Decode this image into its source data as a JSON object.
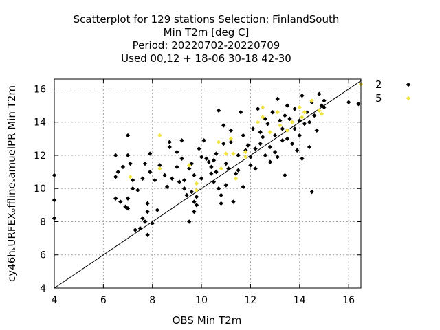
{
  "chart_data": {
    "type": "scatter",
    "title_lines": [
      "Scatterplot for  129 stations Selection: FinlandSouth",
      "Min T2m [deg C]",
      "Period: 20220702-20220709",
      "Used  00,12  + 18-06 30-18 42-30"
    ],
    "xlabel": "OBS Min T2m",
    "ylabel": "cy46hₛURFEXₒfflineₛamuelPR Min T2m",
    "xlim": [
      4,
      16.5
    ],
    "ylim": [
      4,
      16.6
    ],
    "xticks": [
      4,
      6,
      8,
      10,
      12,
      14,
      16
    ],
    "yticks": [
      4,
      6,
      8,
      10,
      12,
      14,
      16
    ],
    "grid": true,
    "legend_position": "top-right outside",
    "diagonal": true,
    "series": [
      {
        "name": "2",
        "color": "#000000",
        "points": [
          [
            4.0,
            10.8
          ],
          [
            4.0,
            9.3
          ],
          [
            4.0,
            8.2
          ],
          [
            6.5,
            12.0
          ],
          [
            6.5,
            10.7
          ],
          [
            6.5,
            9.4
          ],
          [
            6.6,
            11.0
          ],
          [
            6.7,
            9.2
          ],
          [
            6.8,
            11.3
          ],
          [
            6.9,
            8.9
          ],
          [
            7.0,
            13.2
          ],
          [
            7.0,
            12.0
          ],
          [
            7.0,
            9.4
          ],
          [
            7.0,
            8.8
          ],
          [
            7.1,
            11.5
          ],
          [
            7.2,
            10.5
          ],
          [
            7.2,
            10.0
          ],
          [
            7.3,
            7.5
          ],
          [
            7.4,
            9.9
          ],
          [
            7.5,
            7.6
          ],
          [
            7.6,
            8.2
          ],
          [
            7.6,
            10.6
          ],
          [
            7.7,
            8.0
          ],
          [
            7.7,
            11.5
          ],
          [
            7.8,
            7.2
          ],
          [
            7.8,
            8.6
          ],
          [
            7.8,
            9.1
          ],
          [
            7.9,
            11.0
          ],
          [
            7.9,
            12.1
          ],
          [
            8.0,
            7.9
          ],
          [
            8.1,
            10.5
          ],
          [
            8.2,
            8.7
          ],
          [
            8.3,
            11.4
          ],
          [
            8.5,
            10.8
          ],
          [
            8.6,
            10.1
          ],
          [
            8.7,
            12.5
          ],
          [
            8.7,
            12.8
          ],
          [
            8.8,
            10.6
          ],
          [
            9.0,
            12.2
          ],
          [
            9.0,
            11.3
          ],
          [
            9.1,
            10.4
          ],
          [
            9.2,
            11.8
          ],
          [
            9.2,
            12.9
          ],
          [
            9.3,
            10.0
          ],
          [
            9.3,
            10.5
          ],
          [
            9.4,
            9.6
          ],
          [
            9.5,
            11.2
          ],
          [
            9.5,
            8.0
          ],
          [
            9.6,
            9.8
          ],
          [
            9.6,
            11.5
          ],
          [
            9.7,
            9.2
          ],
          [
            9.7,
            8.6
          ],
          [
            9.7,
            10.8
          ],
          [
            9.8,
            9.0
          ],
          [
            9.8,
            9.5
          ],
          [
            9.9,
            12.4
          ],
          [
            10.0,
            11.9
          ],
          [
            10.0,
            10.6
          ],
          [
            10.1,
            12.9
          ],
          [
            10.2,
            11.8
          ],
          [
            10.3,
            11.6
          ],
          [
            10.4,
            11.3
          ],
          [
            10.4,
            10.9
          ],
          [
            10.5,
            11.7
          ],
          [
            10.5,
            10.4
          ],
          [
            10.6,
            12.1
          ],
          [
            10.6,
            11.0
          ],
          [
            10.7,
            14.7
          ],
          [
            10.7,
            10.0
          ],
          [
            10.8,
            9.6
          ],
          [
            10.8,
            9.1
          ],
          [
            10.9,
            13.8
          ],
          [
            10.9,
            12.7
          ],
          [
            11.0,
            11.5
          ],
          [
            11.0,
            10.2
          ],
          [
            11.1,
            11.2
          ],
          [
            11.2,
            13.5
          ],
          [
            11.2,
            12.8
          ],
          [
            11.3,
            9.2
          ],
          [
            11.4,
            10.9
          ],
          [
            11.5,
            12.0
          ],
          [
            11.5,
            11.1
          ],
          [
            11.6,
            14.6
          ],
          [
            11.7,
            13.2
          ],
          [
            11.7,
            10.1
          ],
          [
            11.8,
            12.3
          ],
          [
            11.9,
            12.6
          ],
          [
            12.0,
            11.4
          ],
          [
            12.0,
            11.9
          ],
          [
            12.1,
            13.6
          ],
          [
            12.2,
            12.4
          ],
          [
            12.2,
            11.2
          ],
          [
            12.3,
            14.8
          ],
          [
            12.4,
            12.7
          ],
          [
            12.4,
            13.4
          ],
          [
            12.5,
            13.1
          ],
          [
            12.6,
            14.2
          ],
          [
            12.6,
            12.0
          ],
          [
            12.7,
            13.9
          ],
          [
            12.8,
            12.5
          ],
          [
            12.8,
            11.6
          ],
          [
            12.9,
            14.6
          ],
          [
            13.0,
            13.2
          ],
          [
            13.0,
            12.2
          ],
          [
            13.1,
            15.4
          ],
          [
            13.1,
            11.9
          ],
          [
            13.2,
            14.1
          ],
          [
            13.3,
            13.6
          ],
          [
            13.3,
            12.9
          ],
          [
            13.4,
            14.4
          ],
          [
            13.4,
            10.8
          ],
          [
            13.5,
            13.0
          ],
          [
            13.5,
            15.0
          ],
          [
            13.6,
            14.2
          ],
          [
            13.7,
            12.7
          ],
          [
            13.8,
            14.8
          ],
          [
            13.8,
            13.6
          ],
          [
            13.9,
            12.3
          ],
          [
            14.0,
            14.1
          ],
          [
            14.0,
            13.2
          ],
          [
            14.1,
            11.8
          ],
          [
            14.1,
            15.6
          ],
          [
            14.2,
            13.9
          ],
          [
            14.3,
            14.6
          ],
          [
            14.4,
            12.5
          ],
          [
            14.4,
            14.0
          ],
          [
            14.5,
            9.8
          ],
          [
            14.5,
            15.2
          ],
          [
            14.6,
            14.4
          ],
          [
            14.7,
            13.5
          ],
          [
            14.8,
            15.7
          ],
          [
            14.9,
            15.0
          ],
          [
            15.0,
            14.9
          ],
          [
            15.0,
            15.3
          ],
          [
            16.0,
            15.2
          ],
          [
            16.4,
            15.1
          ]
        ]
      },
      {
        "name": "5",
        "color": "#f0e442",
        "points": [
          [
            7.1,
            10.7
          ],
          [
            8.3,
            13.2
          ],
          [
            8.3,
            11.2
          ],
          [
            9.5,
            11.4
          ],
          [
            9.8,
            10.3
          ],
          [
            9.8,
            9.9
          ],
          [
            10.7,
            12.8
          ],
          [
            10.8,
            11.2
          ],
          [
            11.0,
            12.1
          ],
          [
            11.2,
            13.0
          ],
          [
            11.3,
            12.1
          ],
          [
            11.4,
            10.6
          ],
          [
            11.8,
            11.9
          ],
          [
            11.8,
            12.2
          ],
          [
            12.3,
            14.0
          ],
          [
            12.5,
            14.3
          ],
          [
            12.5,
            14.9
          ],
          [
            12.8,
            13.4
          ],
          [
            13.1,
            14.6
          ],
          [
            13.2,
            13.8
          ],
          [
            13.5,
            13.5
          ],
          [
            13.7,
            14.0
          ],
          [
            14.0,
            14.9
          ],
          [
            14.1,
            14.3
          ],
          [
            14.2,
            14.6
          ],
          [
            14.5,
            15.3
          ],
          [
            14.8,
            14.7
          ],
          [
            14.9,
            14.5
          ],
          [
            16.5,
            16.3
          ]
        ]
      }
    ]
  }
}
